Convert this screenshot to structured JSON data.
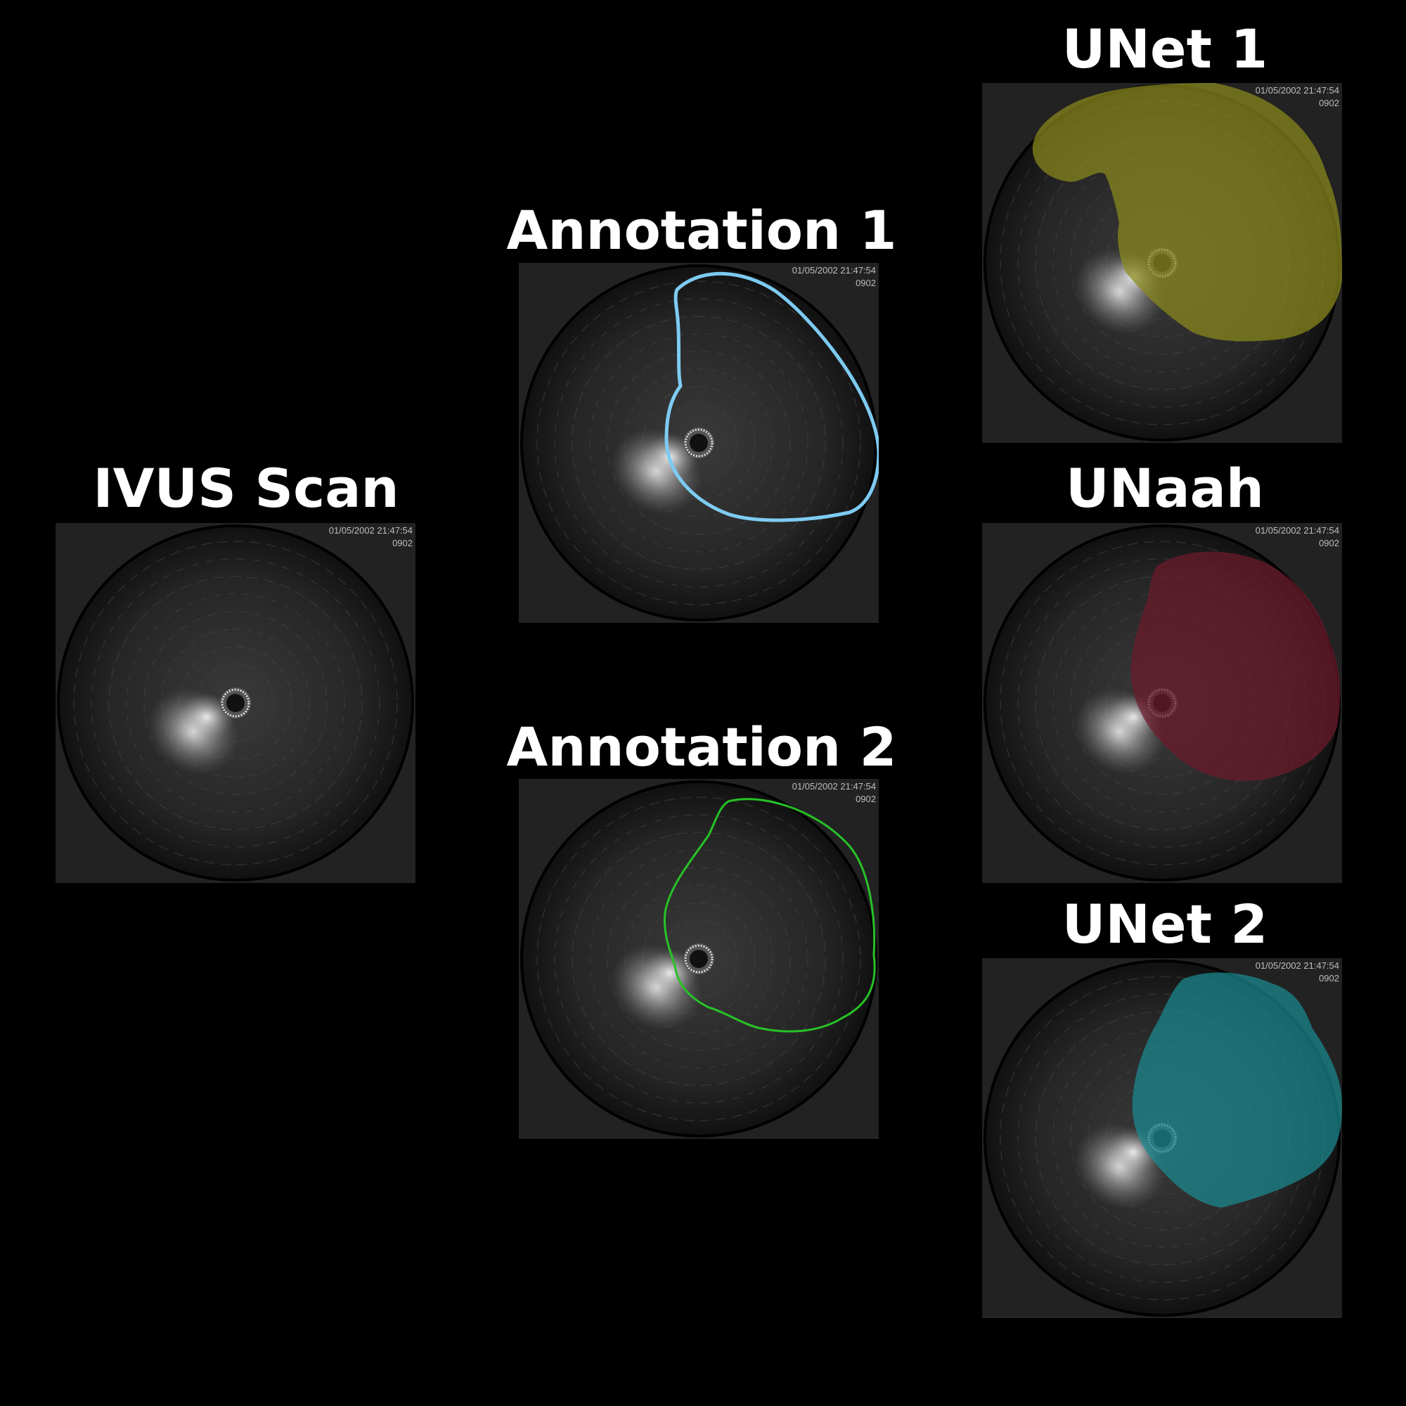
{
  "figure": {
    "panels": [
      {
        "id": "ivus",
        "title": "IVUS Scan",
        "overlay": "none",
        "timestamp": "01/05/2002 21:47:54",
        "frame": "0902"
      },
      {
        "id": "annotation-1",
        "title": "Annotation 1",
        "overlay": "outline",
        "overlay_color": "#7ecbf2",
        "timestamp": "01/05/2002 21:47:54",
        "frame": "0902"
      },
      {
        "id": "annotation-2",
        "title": "Annotation 2",
        "overlay": "outline",
        "overlay_color": "#27c227",
        "timestamp": "01/05/2002 21:47:54",
        "frame": "0902"
      },
      {
        "id": "unet-1",
        "title": "UNet 1",
        "overlay": "mask",
        "overlay_color": "#8a8a1c",
        "timestamp": "01/05/2002 21:47:54",
        "frame": "0902"
      },
      {
        "id": "unaah",
        "title": "UNaah",
        "overlay": "mask",
        "overlay_color": "#6e1a2c",
        "timestamp": "01/05/2002 21:47:54",
        "frame": "0902"
      },
      {
        "id": "unet-2",
        "title": "UNet 2",
        "overlay": "mask",
        "overlay_color": "#1a8a92",
        "timestamp": "01/05/2002 21:47:54",
        "frame": "0902"
      }
    ]
  }
}
